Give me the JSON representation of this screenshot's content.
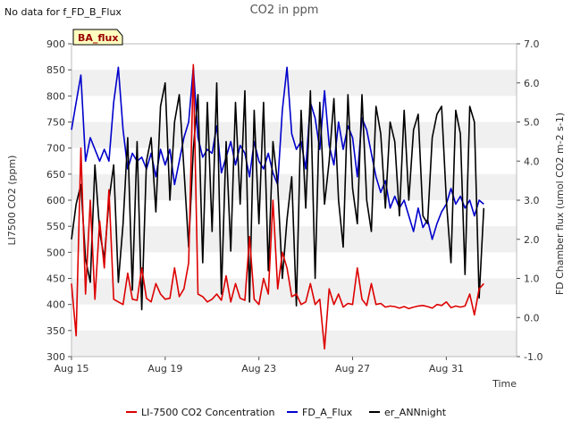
{
  "chart_data": {
    "type": "line",
    "title": "CO2 in ppm",
    "note": "No data for f_FD_B_Flux",
    "badge": "BA_flux",
    "xlabel": "Time",
    "ylabel_left": "LI7500 CO2 (ppm)",
    "ylabel_right": "FD Chamber flux (umol CO2 m-2 s-1)",
    "ylim_left": [
      300,
      900
    ],
    "ylim_right": [
      -1.0,
      7.0
    ],
    "xlim": [
      15,
      34
    ],
    "x_unit": "day of August",
    "yticks_left": [
      300,
      350,
      400,
      450,
      500,
      550,
      600,
      650,
      700,
      750,
      800,
      850,
      900
    ],
    "yticks_right": [
      -1.0,
      0.0,
      1.0,
      2.0,
      3.0,
      4.0,
      5.0,
      6.0,
      7.0
    ],
    "yticks_right_labels": [
      "-1.0",
      "0.0",
      "1.0",
      "2.0",
      "3.0",
      "4.0",
      "5.0",
      "6.0",
      "7.0"
    ],
    "xticks": [
      {
        "x": 15,
        "label": "Aug 15"
      },
      {
        "x": 19,
        "label": "Aug 19"
      },
      {
        "x": 23,
        "label": "Aug 23"
      },
      {
        "x": 27,
        "label": "Aug 27"
      },
      {
        "x": 31,
        "label": "Aug 31"
      }
    ],
    "grid": "horizontal bands",
    "legend_position": "bottom",
    "series": [
      {
        "name": "LI-7500 CO2 Concentration",
        "axis": "left",
        "color": "#dd0000",
        "x": [
          15.0,
          15.2,
          15.4,
          15.6,
          15.8,
          16.0,
          16.2,
          16.4,
          16.6,
          16.8,
          17.0,
          17.2,
          17.4,
          17.6,
          17.8,
          18.0,
          18.2,
          18.4,
          18.6,
          18.8,
          19.0,
          19.2,
          19.4,
          19.6,
          19.8,
          20.0,
          20.2,
          20.4,
          20.6,
          20.8,
          21.0,
          21.2,
          21.4,
          21.6,
          21.8,
          22.0,
          22.2,
          22.4,
          22.6,
          22.8,
          23.0,
          23.2,
          23.4,
          23.6,
          23.8,
          24.0,
          24.2,
          24.4,
          24.6,
          24.8,
          25.0,
          25.2,
          25.4,
          25.6,
          25.8,
          26.0,
          26.2,
          26.4,
          26.6,
          26.8,
          27.0,
          27.2,
          27.4,
          27.6,
          27.8,
          28.0,
          28.2,
          28.4,
          28.6,
          28.8,
          29.0,
          29.2,
          29.4,
          29.6,
          29.8,
          30.0,
          30.2,
          30.4,
          30.6,
          30.8,
          31.0,
          31.2,
          31.4,
          31.6,
          31.8,
          32.0,
          32.2,
          32.4,
          32.6
        ],
        "values": [
          440,
          340,
          700,
          420,
          600,
          410,
          560,
          470,
          620,
          410,
          405,
          400,
          460,
          410,
          408,
          470,
          412,
          405,
          440,
          420,
          410,
          412,
          470,
          415,
          430,
          480,
          860,
          420,
          415,
          405,
          410,
          420,
          408,
          455,
          405,
          440,
          412,
          408,
          530,
          410,
          400,
          450,
          420,
          600,
          430,
          500,
          470,
          415,
          420,
          400,
          405,
          440,
          400,
          410,
          315,
          430,
          400,
          420,
          395,
          402,
          400,
          470,
          410,
          398,
          440,
          400,
          402,
          395,
          397,
          396,
          393,
          396,
          392,
          395,
          397,
          398,
          396,
          393,
          400,
          398,
          405,
          394,
          397,
          395,
          397,
          420,
          380,
          430,
          440
        ]
      },
      {
        "name": "FD_A_Flux",
        "axis": "right",
        "color": "#0000cc",
        "x": [
          15.0,
          15.2,
          15.4,
          15.6,
          15.8,
          16.0,
          16.2,
          16.4,
          16.6,
          16.8,
          17.0,
          17.2,
          17.4,
          17.6,
          17.8,
          18.0,
          18.2,
          18.4,
          18.6,
          18.8,
          19.0,
          19.2,
          19.4,
          19.6,
          19.8,
          20.0,
          20.2,
          20.4,
          20.6,
          20.8,
          21.0,
          21.2,
          21.4,
          21.6,
          21.8,
          22.0,
          22.2,
          22.4,
          22.6,
          22.8,
          23.0,
          23.2,
          23.4,
          23.6,
          23.8,
          24.0,
          24.2,
          24.4,
          24.6,
          24.8,
          25.0,
          25.2,
          25.4,
          25.6,
          25.8,
          26.0,
          26.2,
          26.4,
          26.6,
          26.8,
          27.0,
          27.2,
          27.4,
          27.6,
          27.8,
          28.0,
          28.2,
          28.4,
          28.6,
          28.8,
          29.0,
          29.2,
          29.4,
          29.6,
          29.8,
          30.0,
          30.2,
          30.4,
          30.6,
          30.8,
          31.0,
          31.2,
          31.4,
          31.6,
          31.8,
          32.0,
          32.2,
          32.4,
          32.6
        ],
        "values": [
          4.8,
          5.5,
          6.2,
          4.0,
          4.6,
          4.3,
          4.0,
          4.3,
          4.0,
          5.5,
          6.4,
          4.8,
          3.8,
          4.2,
          4.0,
          4.1,
          3.8,
          4.2,
          3.6,
          4.3,
          3.9,
          4.3,
          3.4,
          4.0,
          4.6,
          5.0,
          6.4,
          4.6,
          4.1,
          4.3,
          4.2,
          4.9,
          3.7,
          4.1,
          4.5,
          3.9,
          4.4,
          4.2,
          3.6,
          4.5,
          4.0,
          3.8,
          4.2,
          3.7,
          3.4,
          5.3,
          6.4,
          4.7,
          4.3,
          4.5,
          3.8,
          5.5,
          5.1,
          4.3,
          5.8,
          4.4,
          3.9,
          5.0,
          4.3,
          4.9,
          4.6,
          3.6,
          5.1,
          4.8,
          4.2,
          3.6,
          3.2,
          3.5,
          2.8,
          3.1,
          2.8,
          3.0,
          2.6,
          2.2,
          2.8,
          2.3,
          2.5,
          2.0,
          2.4,
          2.7,
          2.9,
          3.3,
          2.9,
          3.1,
          2.8,
          3.0,
          2.6,
          3.0,
          2.9
        ]
      },
      {
        "name": "er_ANNnight",
        "axis": "right",
        "color": "#000000",
        "x": [
          15.0,
          15.2,
          15.4,
          15.6,
          15.8,
          16.0,
          16.2,
          16.4,
          16.6,
          16.8,
          17.0,
          17.2,
          17.4,
          17.6,
          17.8,
          18.0,
          18.2,
          18.4,
          18.6,
          18.8,
          19.0,
          19.2,
          19.4,
          19.6,
          19.8,
          20.0,
          20.2,
          20.4,
          20.6,
          20.8,
          21.0,
          21.2,
          21.4,
          21.6,
          21.8,
          22.0,
          22.2,
          22.4,
          22.6,
          22.8,
          23.0,
          23.2,
          23.4,
          23.6,
          23.8,
          24.0,
          24.2,
          24.4,
          24.6,
          24.8,
          25.0,
          25.2,
          25.4,
          25.6,
          25.8,
          26.0,
          26.2,
          26.4,
          26.6,
          26.8,
          27.0,
          27.2,
          27.4,
          27.6,
          27.8,
          28.0,
          28.2,
          28.4,
          28.6,
          28.8,
          29.0,
          29.2,
          29.4,
          29.6,
          29.8,
          30.0,
          30.2,
          30.4,
          30.6,
          30.8,
          31.0,
          31.2,
          31.4,
          31.6,
          31.8,
          32.0,
          32.2,
          32.4,
          32.6
        ],
        "values": [
          2.0,
          2.9,
          3.4,
          1.5,
          0.9,
          3.9,
          2.2,
          1.5,
          3.0,
          3.9,
          0.9,
          2.4,
          4.6,
          0.7,
          4.5,
          0.2,
          4.0,
          4.6,
          2.7,
          5.4,
          6.0,
          3.0,
          5.0,
          5.7,
          3.8,
          1.8,
          4.3,
          5.7,
          1.4,
          5.5,
          2.2,
          6.0,
          0.6,
          4.5,
          1.7,
          5.5,
          2.9,
          5.8,
          0.4,
          5.3,
          2.4,
          5.5,
          1.2,
          4.5,
          3.4,
          1.0,
          2.5,
          3.6,
          0.3,
          5.3,
          2.8,
          5.8,
          1.0,
          5.5,
          2.9,
          4.0,
          5.6,
          3.0,
          1.8,
          5.7,
          3.3,
          2.4,
          5.7,
          3.0,
          2.2,
          5.4,
          4.7,
          2.8,
          5.0,
          4.5,
          2.6,
          5.3,
          3.0,
          4.8,
          5.2,
          2.6,
          2.4,
          4.6,
          5.2,
          5.4,
          3.0,
          1.4,
          5.3,
          4.7,
          1.1,
          5.4,
          5.0,
          0.5,
          2.8
        ]
      }
    ]
  }
}
